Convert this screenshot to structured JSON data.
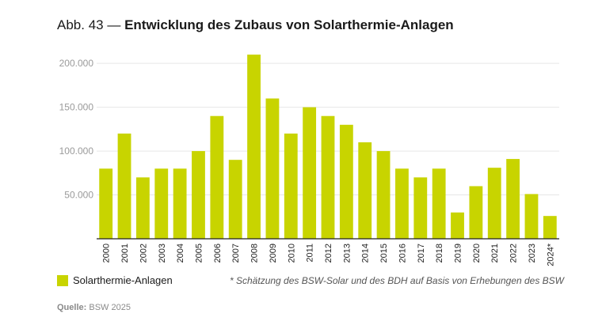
{
  "header": {
    "prefix": "Abb. 43 —",
    "title": "Entwicklung des Zubaus von Solarthermie-Anlagen"
  },
  "legend": {
    "label": "Solarthermie-Anlagen"
  },
  "footnote": "* Schätzung des BSW-Solar und des BDH auf Basis von Erhebungen des BSW",
  "source": {
    "label": "Quelle:",
    "value": "BSW 2025"
  },
  "colors": {
    "bar": "#c8d400",
    "grid": "#e6e6e6",
    "axis": "#222222"
  },
  "chart_data": {
    "type": "bar",
    "title": "Entwicklung des Zubaus von Solarthermie-Anlagen",
    "xlabel": "",
    "ylabel": "",
    "categories": [
      "2000",
      "2001",
      "2002",
      "2003",
      "2004",
      "2005",
      "2006",
      "2007",
      "2008",
      "2009",
      "2010",
      "2011",
      "2012",
      "2013",
      "2014",
      "2015",
      "2016",
      "2017",
      "2018",
      "2019",
      "2020",
      "2021",
      "2022",
      "2023",
      "2024*"
    ],
    "series": [
      {
        "name": "Solarthermie-Anlagen",
        "values": [
          80000,
          120000,
          70000,
          80000,
          80000,
          100000,
          140000,
          90000,
          210000,
          160000,
          120000,
          150000,
          140000,
          130000,
          110000,
          100000,
          80000,
          70000,
          80000,
          30000,
          60000,
          81000,
          91000,
          51000,
          26000
        ]
      }
    ],
    "ylim": [
      0,
      220000
    ],
    "yticks": [
      50000,
      100000,
      150000,
      200000
    ],
    "ytick_labels": [
      "50.000",
      "100.000",
      "150.000",
      "200.000"
    ],
    "grid": true,
    "legend_position": "bottom-left"
  }
}
